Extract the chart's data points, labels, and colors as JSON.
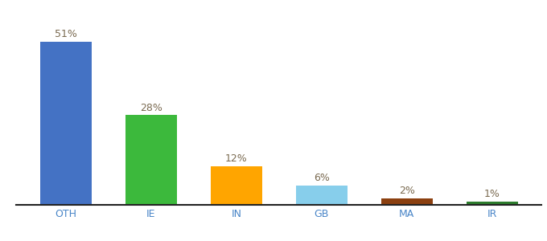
{
  "categories": [
    "OTH",
    "IE",
    "IN",
    "GB",
    "MA",
    "IR"
  ],
  "values": [
    51,
    28,
    12,
    6,
    2,
    1
  ],
  "labels": [
    "51%",
    "28%",
    "12%",
    "6%",
    "2%",
    "1%"
  ],
  "bar_colors": [
    "#4472C4",
    "#3CB93C",
    "#FFA500",
    "#87CEEB",
    "#8B4010",
    "#2D7D2D"
  ],
  "ylim": [
    0,
    58
  ],
  "background_color": "#ffffff",
  "label_fontsize": 9,
  "tick_fontsize": 9,
  "tick_color": "#4A86C8",
  "label_color": "#7a6a50"
}
